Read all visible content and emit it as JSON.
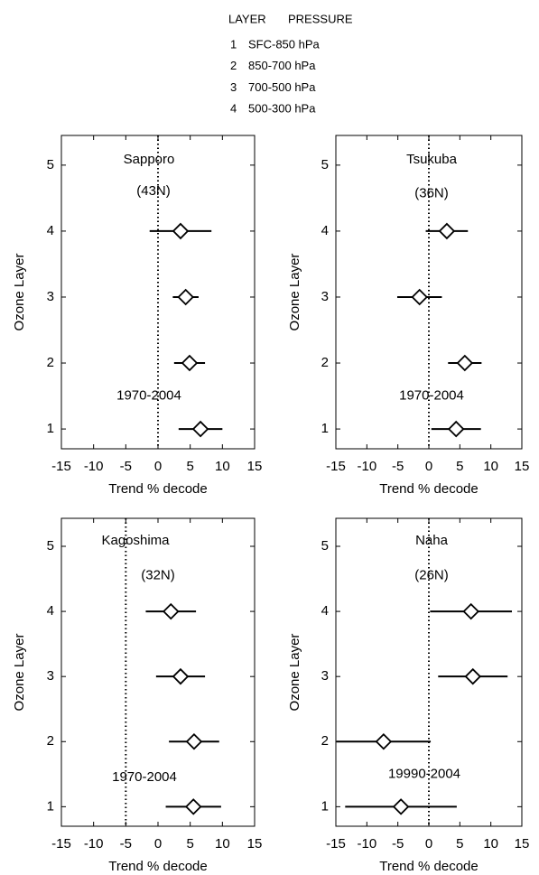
{
  "legend": {
    "header": [
      "LAYER",
      "PRESSURE"
    ],
    "rows": [
      {
        "layer": 1,
        "pressure": "SFC-850 hPa"
      },
      {
        "layer": 2,
        "pressure": "850-700 hPa"
      },
      {
        "layer": 3,
        "pressure": "700-500 hPa"
      },
      {
        "layer": 4,
        "pressure": "500-300 hPa"
      }
    ]
  },
  "chart_data": [
    {
      "type": "scatter",
      "title": "Sapporo",
      "subtitle": "(43N)",
      "annotation": "1970-2004",
      "xlabel": "Trend % decode",
      "ylabel": "Ozone Layer",
      "x": [
        3.5,
        4.3,
        4.9,
        6.6
      ],
      "xerr": [
        4.8,
        2,
        2.4,
        3.4
      ],
      "y": [
        4,
        3,
        2,
        1
      ],
      "xlim": [
        -15,
        15
      ],
      "xticks": [
        -15,
        -10,
        -5,
        0,
        5,
        10,
        15
      ],
      "ylim": [
        0.7,
        5.45
      ],
      "yticks": [
        1,
        2,
        3,
        4,
        5
      ],
      "refline_x": 0,
      "color": "#000000"
    },
    {
      "type": "scatter",
      "title": "Tsukuba",
      "subtitle": "(36N)",
      "annotation": "1970-2004",
      "xlabel": "Trend % decode",
      "ylabel": "Ozone Layer",
      "x": [
        2.9,
        -1.5,
        5.8,
        4.4
      ],
      "xerr": [
        3.4,
        3.6,
        2.7,
        4
      ],
      "y": [
        4,
        3,
        2,
        1
      ],
      "xlim": [
        -15,
        15
      ],
      "xticks": [
        -15,
        -10,
        -5,
        0,
        5,
        10,
        15
      ],
      "ylim": [
        0.7,
        5.45
      ],
      "yticks": [
        1,
        2,
        3,
        4,
        5
      ],
      "refline_x": 0,
      "color": "#000000"
    },
    {
      "type": "scatter",
      "title": "Kagoshima",
      "subtitle": "(32N)",
      "annotation": "1970-2004",
      "xlabel": "Trend % decode",
      "ylabel": "Ozone Layer",
      "x": [
        2,
        3.5,
        5.6,
        5.5
      ],
      "xerr": [
        3.9,
        3.8,
        3.9,
        4.3
      ],
      "y": [
        4,
        3,
        2,
        1
      ],
      "xlim": [
        -15,
        15
      ],
      "xticks": [
        -15,
        -10,
        -5,
        0,
        5,
        10,
        15
      ],
      "ylim": [
        0.7,
        5.43
      ],
      "yticks": [
        1,
        2,
        3,
        4,
        5
      ],
      "refline_x": -5,
      "color": "#000000"
    },
    {
      "type": "scatter",
      "title": "Naha",
      "subtitle": "(26N)",
      "annotation": "19990-2004",
      "xlabel": "Trend % decode",
      "ylabel": "Ozone Layer",
      "x": [
        6.8,
        7.1,
        -7.3,
        -4.5
      ],
      "xerr": [
        6.6,
        5.6,
        7.6,
        9
      ],
      "y": [
        4,
        3,
        2,
        1
      ],
      "xlim": [
        -15,
        15
      ],
      "xticks": [
        -15,
        -10,
        -5,
        0,
        5,
        10,
        15
      ],
      "ylim": [
        0.7,
        5.43
      ],
      "yticks": [
        1,
        2,
        3,
        4,
        5
      ],
      "refline_x": 0,
      "color": "#000000"
    }
  ]
}
